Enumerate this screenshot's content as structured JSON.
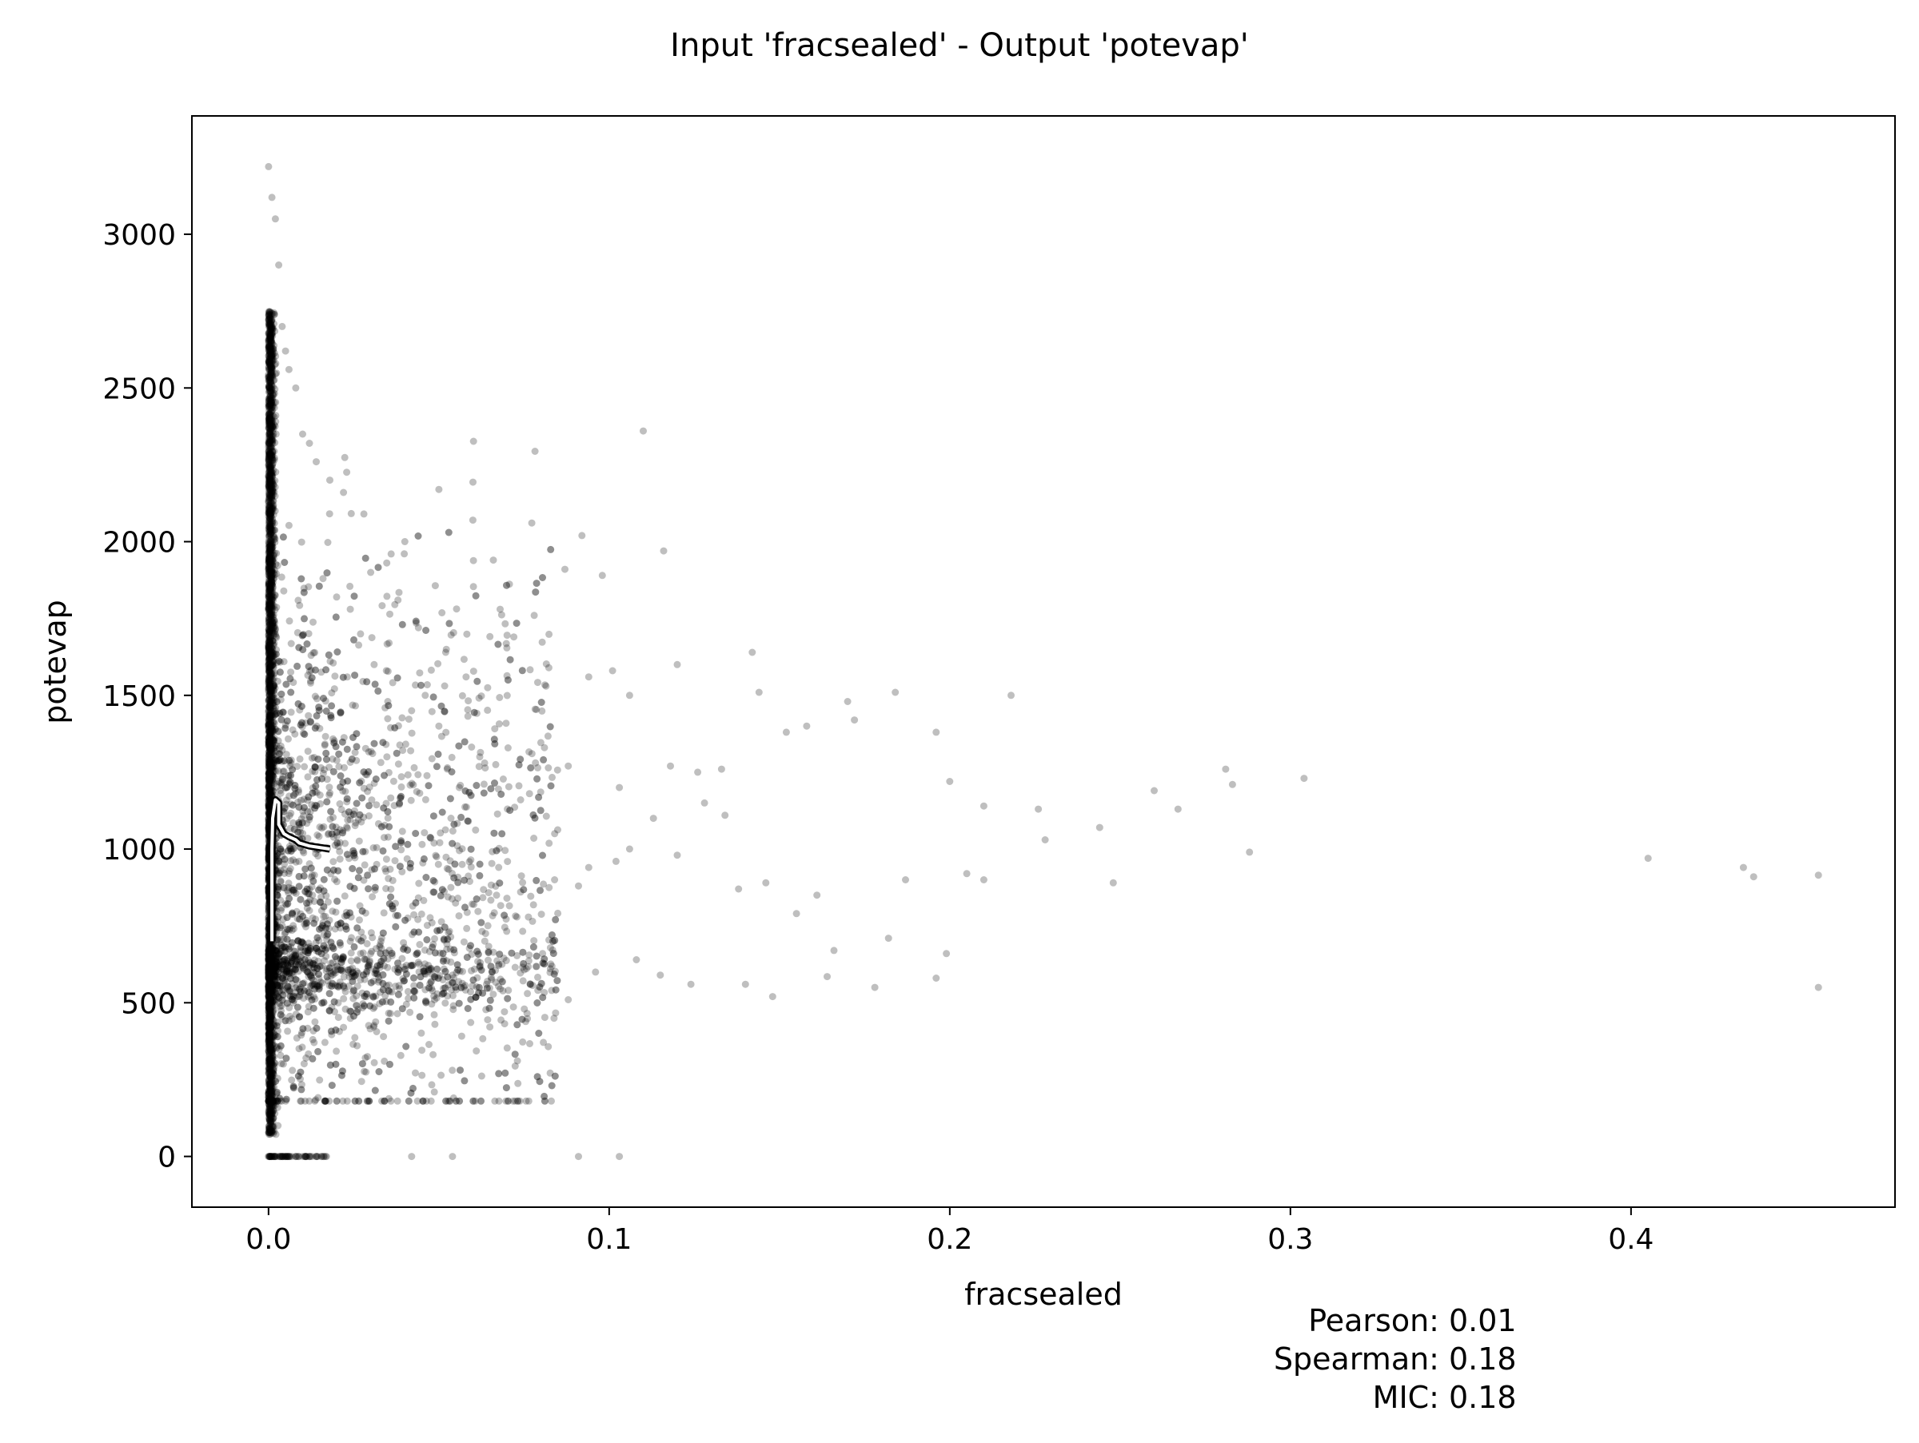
{
  "chart_data": {
    "type": "scatter",
    "title": "Input 'fracsealed' - Output 'potevap'",
    "xlabel": "fracsealed",
    "ylabel": "potevap",
    "xlim": [
      -0.0225,
      0.4775
    ],
    "ylim": [
      -165,
      3385
    ],
    "xticks": [
      0.0,
      0.1,
      0.2,
      0.3,
      0.4
    ],
    "xtick_labels": [
      "0.0",
      "0.1",
      "0.2",
      "0.3",
      "0.4"
    ],
    "yticks": [
      0,
      500,
      1000,
      1500,
      2000,
      2500,
      3000
    ],
    "ytick_labels": [
      "0",
      "500",
      "1000",
      "1500",
      "2000",
      "2500",
      "3000"
    ],
    "grid": false,
    "marker_color": "#000000",
    "marker_alpha": 0.25,
    "trend_line_color": "#ffffff",
    "trend_line": {
      "x": [
        0.001,
        0.001,
        0.0012,
        0.002,
        0.003,
        0.003,
        0.0045,
        0.006,
        0.008,
        0.009,
        0.012,
        0.015,
        0.018
      ],
      "y": [
        700,
        1000,
        1100,
        1160,
        1150,
        1080,
        1050,
        1040,
        1030,
        1020,
        1010,
        1005,
        1000
      ]
    },
    "series": [
      {
        "x": [
          0.11,
          0.05,
          0.06,
          0.092,
          0.098,
          0.116,
          0.087,
          0.066,
          0.078,
          0.142,
          0.12,
          0.144,
          0.094,
          0.101,
          0.106,
          0.118,
          0.126,
          0.133,
          0.152,
          0.158,
          0.17,
          0.172,
          0.184,
          0.196,
          0.218,
          0.2,
          0.21,
          0.226,
          0.228,
          0.244,
          0.248,
          0.26,
          0.267,
          0.281,
          0.283,
          0.288,
          0.304,
          0.405,
          0.433,
          0.436,
          0.455,
          0.455,
          0.182,
          0.164,
          0.166,
          0.178,
          0.196,
          0.199,
          0.113,
          0.103,
          0.138,
          0.146,
          0.155,
          0.161,
          0.187,
          0.205,
          0.21,
          0.134,
          0.128,
          0.12,
          0.106,
          0.094,
          0.084,
          0.074,
          0.081,
          0.088,
          0.062,
          0.056,
          0.05,
          0.046,
          0.042,
          0.035,
          0.031,
          0.027,
          0.024,
          0.02,
          0.016,
          0.03,
          0.036,
          0.04,
          0.068,
          0.072,
          0.058,
          0.052,
          0.044,
          0.038,
          0.028,
          0.022,
          0.018,
          0.014,
          0.012,
          0.01,
          0.008,
          0.006,
          0.005,
          0.004,
          0.003,
          0.002,
          0.001,
          0.0,
          0.012,
          0.016,
          0.024,
          0.03,
          0.042,
          0.054,
          0.064,
          0.076,
          0.088,
          0.096,
          0.108,
          0.115,
          0.124,
          0.14,
          0.148,
          0.102,
          0.091,
          0.07,
          0.048,
          0.033,
          0.026,
          0.019,
          0.013,
          0.009,
          0.042,
          0.054,
          0.091,
          0.103,
          0.002,
          0.004,
          0.006,
          0.008,
          0.01,
          0.014,
          0.017,
          0.011,
          0.007,
          0.013,
          0.022,
          0.026,
          0.034
        ],
        "y": [
          2360,
          2170,
          2070,
          2020,
          1890,
          1970,
          1910,
          1940,
          1760,
          1640,
          1600,
          1510,
          1560,
          1580,
          1500,
          1270,
          1250,
          1260,
          1380,
          1400,
          1480,
          1420,
          1510,
          1380,
          1500,
          1220,
          1140,
          1130,
          1030,
          1070,
          890,
          1190,
          1130,
          1260,
          1210,
          990,
          1230,
          970,
          940,
          910,
          915,
          550,
          710,
          585,
          670,
          550,
          580,
          660,
          1100,
          1200,
          870,
          890,
          790,
          850,
          900,
          920,
          900,
          1110,
          1150,
          980,
          1000,
          940,
          1050,
          1160,
          1330,
          1270,
          1300,
          1200,
          1400,
          1500,
          1450,
          1480,
          1600,
          1700,
          1780,
          1820,
          1880,
          1900,
          1960,
          2000,
          1780,
          1690,
          1560,
          1640,
          1720,
          1810,
          2090,
          2160,
          2200,
          2260,
          2320,
          2350,
          2500,
          2560,
          2620,
          2700,
          2900,
          3050,
          3120,
          3220,
          800,
          760,
          700,
          660,
          620,
          590,
          560,
          530,
          510,
          600,
          640,
          590,
          560,
          560,
          520,
          960,
          880,
          840,
          760,
          700,
          640,
          600,
          560,
          520,
          0,
          0,
          0,
          0,
          0,
          0,
          0,
          0,
          0,
          0,
          0,
          320,
          280,
          380,
          420,
          360,
          310
        ]
      }
    ],
    "stats": {
      "pearson_label": "Pearson:",
      "pearson": "0.01",
      "spearman_label": "Spearman:",
      "spearman": "0.18",
      "mic_label": "MIC:",
      "mic": "0.18"
    }
  }
}
